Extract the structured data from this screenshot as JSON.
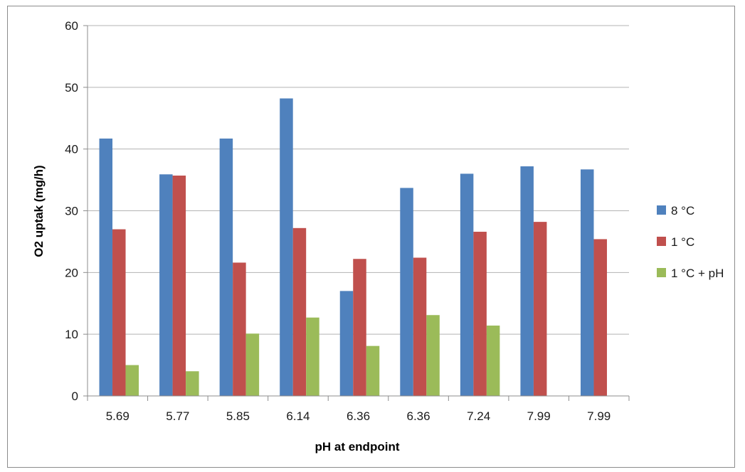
{
  "chart_data": {
    "type": "bar",
    "title": "",
    "xlabel": "pH at endpoint",
    "ylabel": "O2 uptak (mg/h)",
    "ylim": [
      0,
      60
    ],
    "yticks": [
      0,
      10,
      20,
      30,
      40,
      50,
      60
    ],
    "grid": true,
    "legend_position": "right",
    "categories": [
      "5.69",
      "5.77",
      "5.85",
      "6.14",
      "6.36",
      "6.36",
      "7.24",
      "7.99",
      "7.99"
    ],
    "series": [
      {
        "name": "8 °C",
        "color": "#4f81bd",
        "values": [
          41.7,
          35.9,
          41.7,
          48.2,
          17.0,
          33.7,
          36.0,
          37.2,
          36.7
        ]
      },
      {
        "name": "1 °C",
        "color": "#c0504d",
        "values": [
          27.0,
          35.7,
          21.6,
          27.2,
          22.2,
          22.4,
          26.6,
          28.2,
          25.4
        ]
      },
      {
        "name": "1 °C + pH",
        "color": "#9bbb59",
        "values": [
          5.0,
          4.0,
          10.1,
          12.7,
          8.1,
          13.1,
          11.4,
          null,
          null
        ]
      }
    ]
  }
}
